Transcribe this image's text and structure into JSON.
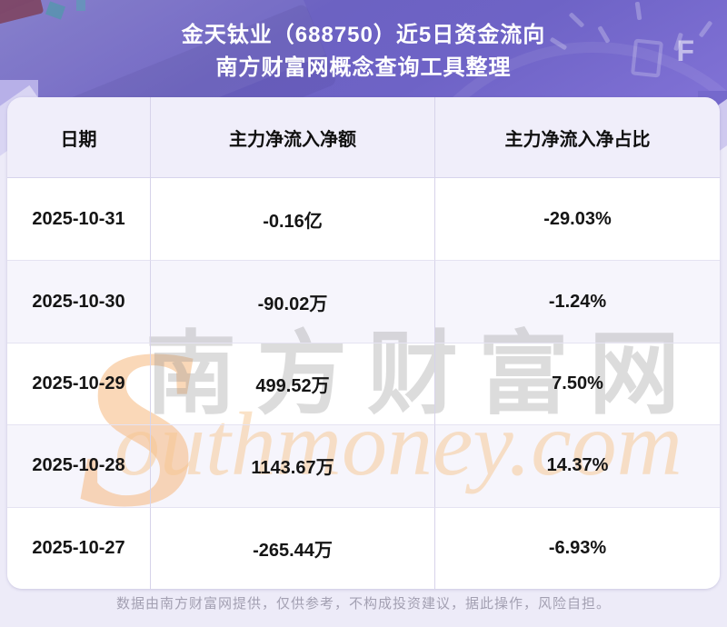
{
  "page": {
    "title_line1": "金天钛业（688750）近5日资金流向",
    "title_line2": "南方财富网概念查询工具整理",
    "footer": "数据由南方财富网提供，仅供参考，不构成投资建议，据此操作，风险自担。"
  },
  "hero": {
    "gauge_f_label": "F"
  },
  "table": {
    "headers": [
      "日期",
      "主力净流入净额",
      "主力净流入净占比"
    ],
    "rows": [
      {
        "date": "2025-10-31",
        "net_inflow": "-0.16亿",
        "net_inflow_ratio": "-29.03%"
      },
      {
        "date": "2025-10-30",
        "net_inflow": "-90.02万",
        "net_inflow_ratio": "-1.24%"
      },
      {
        "date": "2025-10-29",
        "net_inflow": "499.52万",
        "net_inflow_ratio": "7.50%"
      },
      {
        "date": "2025-10-28",
        "net_inflow": "1143.67万",
        "net_inflow_ratio": "14.37%"
      },
      {
        "date": "2025-10-27",
        "net_inflow": "-265.44万",
        "net_inflow_ratio": "-6.93%"
      }
    ]
  },
  "watermark": {
    "s": "S",
    "cn": "南方财富网",
    "en": "outhmoney.com"
  },
  "colors": {
    "hero_purple": "#6e63c6",
    "page_bg": "#edebf8",
    "table_header_bg": "#f0eefa",
    "row_white": "#ffffff",
    "row_alt": "#f6f5fc",
    "divider": "#d7d3ea",
    "watermark_orange": "#f6b97f",
    "watermark_gray": "#8f8f8f",
    "title_text": "#ffffff",
    "cell_text": "#151515",
    "footer_text": "#a3a0b2"
  },
  "chart_data": {
    "type": "table",
    "title": "金天钛业（688750）近5日资金流向",
    "subtitle": "南方财富网概念查询工具整理",
    "columns": [
      "日期",
      "主力净流入净额",
      "主力净流入净占比"
    ],
    "rows": [
      [
        "2025-10-31",
        "-0.16亿",
        "-29.03%"
      ],
      [
        "2025-10-30",
        "-90.02万",
        "-1.24%"
      ],
      [
        "2025-10-29",
        "499.52万",
        "7.50%"
      ],
      [
        "2025-10-28",
        "1143.67万",
        "14.37%"
      ],
      [
        "2025-10-27",
        "-265.44万",
        "-6.93%"
      ]
    ],
    "net_inflow_values_wan": [
      -1600,
      -90.02,
      499.52,
      1143.67,
      -265.44
    ],
    "net_inflow_ratio_pct": [
      -29.03,
      -1.24,
      7.5,
      14.37,
      -6.93
    ]
  }
}
